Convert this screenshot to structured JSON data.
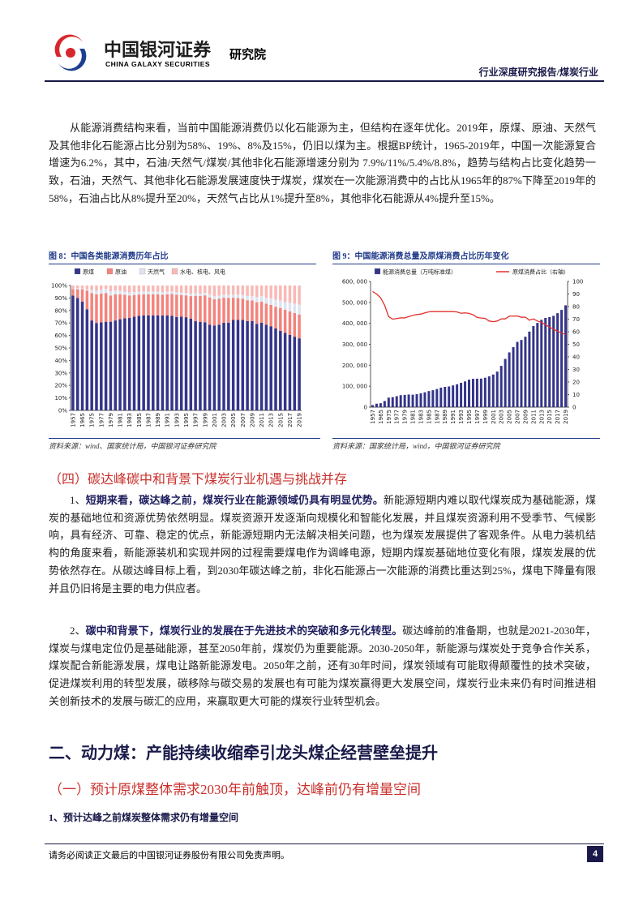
{
  "header": {
    "company": "中国银河证券",
    "company_en": "CHINA GALAXY SECURITIES",
    "institute": "研究院",
    "report_type": "行业深度研究报告/煤炭行业"
  },
  "paragraphs": [
    "从能源消费结构来看，当前中国能源消费仍以化石能源为主，但结构在逐年优化。2019年，原煤、原油、天然气及其他非化石能源占比分别为58%、19%、8%及15%，仍旧以煤为主。根据BP统计，1965-2019年，中国一次能源复合增速为6.2%，其中，石油/天然气/煤炭/其他非化石能源增速分别为 7.9%/11%/5.4%/8.8%，趋势与结构占比变化趋势一致，石油，天然气、其他非化石能源发展速度快于煤炭，煤炭在一次能源消费中的占比从1965年的87%下降至2019年的58%，石油占比从8%提升至20%，天然气占比从1%提升至8%，其他非化石能源从4%提升至15%。",
    {
      "lead": "1、",
      "bold": "短期来看，碳达峰之前，煤炭行业在能源领域仍具有明显优势。",
      "text": "新能源短期内难以取代煤炭成为基础能源，煤炭的基础地位和资源优势依然明显。煤炭资源开发逐渐向规模化和智能化发展，并且煤炭资源利用不受季节、气候影响，具有经济、可靠、稳定的优点，新能源短期内无法解决相关问题，也为煤炭发展提供了客观条件。从电力装机结构的角度来看，新能源装机和实现并网的过程需要煤电作为调峰电源，短期内煤炭基础地位变化有限，煤炭发展的优势依然存在。从碳达峰目标上看，到2030年碳达峰之前，非化石能源占一次能源的消费比重达到25%，煤电下降量有限并且仍旧将是主要的电力供应者。"
    },
    {
      "lead": "2、",
      "bold": "碳中和背景下，煤炭行业的发展在于先进技术的突破和多元化转型。",
      "text": "碳达峰前的准备期，也就是2021-2030年，煤炭与煤电定位仍是基础能源，甚至2050年前，煤炭仍为重要能源。2030-2050年，新能源与煤炭处于竞争合作关系，煤炭配合新能源发展，煤电让路新能源发电。2050年之前，还有30年时间，煤炭领域有可能取得颠覆性的技术突破，促进煤炭利用的转型发展，碳移除与碳交易的发展也有可能为煤炭赢得更大发展空间，煤炭行业未来仍有时间推进相关创新技术的发展与碳汇的应用，来赢取更大可能的煤炭行业转型机会。"
    }
  ],
  "headings": [
    "（四）碳达峰碳中和背景下煤炭行业机遇与挑战并存",
    "二、动力煤：产能持续收缩牵引龙头煤企经营壁垒提升",
    "（一）预计原煤整体需求2030年前触顶，达峰前仍有增量空间",
    "1、预计达峰之前煤炭整体需求仍有增量空间"
  ],
  "footer": {
    "disclaimer": "请务必阅读正文最后的中国银河证券股份有限公司免责声明。",
    "page": 4
  },
  "chart_data": [
    {
      "type": "bar",
      "stacked": true,
      "title": "图 8：中国各类能源消费历年占比",
      "source": "资料来源：wind、国家统计局，中国银河证券研究院",
      "categories": [
        "1957",
        null,
        "1965",
        null,
        "1975",
        null,
        "1977",
        null,
        "1979",
        null,
        "1981",
        null,
        "1983",
        null,
        "1985",
        null,
        "1987",
        null,
        "1989",
        null,
        "1991",
        null,
        "1993",
        null,
        "1995",
        null,
        "1997",
        null,
        "1999",
        null,
        "2001",
        null,
        "2003",
        null,
        "2005",
        null,
        "2007",
        null,
        "2009",
        null,
        "2011",
        null,
        "2013",
        null,
        "2015",
        null,
        "2017",
        null,
        "2019"
      ],
      "ylim": [
        0,
        100
      ],
      "yticks": [
        {
          "value": 0,
          "label": "0%"
        },
        {
          "value": 10,
          "label": "10%"
        },
        {
          "value": 20,
          "label": "20%"
        },
        {
          "value": 30,
          "label": "30%"
        },
        {
          "value": 40,
          "label": "40%"
        },
        {
          "value": 50,
          "label": "50%"
        },
        {
          "value": 60,
          "label": "60%"
        },
        {
          "value": 70,
          "label": "70%"
        },
        {
          "value": 80,
          "label": "80%"
        },
        {
          "value": 90,
          "label": "90%"
        },
        {
          "value": 100,
          "label": "100%"
        }
      ],
      "series": [
        {
          "name": "原煤",
          "color": "#34348a",
          "values": [
            92,
            90,
            87,
            81,
            72,
            70,
            70.5,
            71,
            71,
            72,
            73,
            73.7,
            74,
            75,
            75.8,
            76,
            76,
            76,
            76,
            76,
            76,
            75.7,
            74.7,
            75,
            74.6,
            73.5,
            71.4,
            70.9,
            70.6,
            68.5,
            68,
            68.5,
            70.2,
            70.2,
            72.4,
            72.4,
            72.5,
            71.5,
            71.6,
            69.2,
            70.2,
            68.5,
            67.4,
            65.6,
            63.7,
            62,
            60.4,
            59,
            57.7
          ]
        },
        {
          "name": "原油",
          "color": "#f3837c",
          "values": [
            5,
            7,
            10,
            15,
            22,
            23,
            23,
            23,
            21,
            21,
            20,
            18.9,
            18,
            17.4,
            17,
            17,
            17,
            17,
            17,
            16.6,
            17,
            17.5,
            18,
            17.4,
            17.5,
            18,
            20.4,
            20.8,
            21.5,
            22,
            21,
            21,
            20,
            19.9,
            17.8,
            17.5,
            17,
            16.7,
            16.4,
            17.4,
            16.8,
            17,
            17.1,
            17.4,
            18.3,
            18.5,
            18.8,
            18.9,
            19
          ]
        },
        {
          "name": "天然气",
          "color": "#dfe3f0",
          "values": [
            0.1,
            0.9,
            0.6,
            0.9,
            2.5,
            2.8,
            3.1,
            3.2,
            3.3,
            3.1,
            2.8,
            2.5,
            2.4,
            2.4,
            2.2,
            2.3,
            2.1,
            2.1,
            2,
            2.1,
            2,
            1.9,
            1.9,
            1.9,
            1.8,
            1.8,
            1.8,
            1.8,
            2,
            2.2,
            2.4,
            2.3,
            2.3,
            2.3,
            2.4,
            2.7,
            3,
            3.4,
            3.5,
            4,
            4.6,
            4.8,
            5.3,
            5.7,
            5.9,
            6.2,
            7,
            7.6,
            8
          ]
        },
        {
          "name": "水电、核电、风电",
          "color": "#f9b9b6",
          "values": [
            2.9,
            2.1,
            2.4,
            3.1,
            3.5,
            4.2,
            3.4,
            2.8,
            4.7,
            3.9,
            4.2,
            4.9,
            5.6,
            5.2,
            5,
            4.7,
            4.9,
            4.9,
            5,
            5.3,
            5,
            4.9,
            5.4,
            5.7,
            6.1,
            6.7,
            6.4,
            6.5,
            5.9,
            7.3,
            8.6,
            8.2,
            7.5,
            7.6,
            7.4,
            7.4,
            7.5,
            8.4,
            8.5,
            9.4,
            8.4,
            9.7,
            10.2,
            11.3,
            12.1,
            13.3,
            13.8,
            14.5,
            15.3
          ]
        }
      ]
    },
    {
      "type": "bar",
      "title": "图 9：中国能源消费总量及原煤消费占比历年变化",
      "source": "资料来源：国家统计局，wind，中国银河证券研究院",
      "categories": [
        "1957",
        null,
        "1965",
        null,
        "1975",
        null,
        "1977",
        null,
        "1979",
        null,
        "1981",
        null,
        "1983",
        null,
        "1985",
        null,
        "1987",
        null,
        "1989",
        null,
        "1991",
        null,
        "1993",
        null,
        "1995",
        null,
        "1997",
        null,
        "1999",
        null,
        "2001",
        null,
        "2003",
        null,
        "2005",
        null,
        "2007",
        null,
        "2009",
        null,
        "2011",
        null,
        "2013",
        null,
        "2015",
        null,
        "2017",
        null,
        "2019"
      ],
      "ylim": [
        0,
        600000
      ],
      "yticks": [
        0,
        {
          "value": 100000,
          "label": "100, 000"
        },
        {
          "value": 200000,
          "label": "200, 000"
        },
        {
          "value": 300000,
          "label": "300, 000"
        },
        {
          "value": 400000,
          "label": "400, 000"
        },
        {
          "value": 500000,
          "label": "500, 000"
        },
        {
          "value": 600000,
          "label": "600, 000"
        }
      ],
      "y2lim": [
        0,
        100
      ],
      "y2ticks": [
        0,
        10,
        20,
        30,
        40,
        50,
        60,
        70,
        80,
        90,
        100
      ],
      "series": [
        {
          "name": "能源消费总量（万吨标准煤）",
          "color": "#34348a",
          "values": [
            9644,
            16540,
            18901,
            29291,
            45425,
            47831,
            52354,
            57144,
            58588,
            60275,
            59447,
            62067,
            66040,
            70904,
            76682,
            80850,
            86632,
            92997,
            96934,
            98703,
            103783,
            109170,
            115993,
            122737,
            131176,
            135192,
            135909,
            136184,
            140569,
            146964,
            155547,
            169577,
            197083,
            230281,
            261369,
            286467,
            311442,
            320611,
            336126,
            360648,
            387043,
            402138,
            416913,
            425806,
            429905,
            435819,
            448529,
            464000,
            486000
          ]
        },
        {
          "name": "原煤消费占比（右轴）",
          "type": "line",
          "axis": "y2",
          "color": "#e2312c",
          "values": [
            92,
            90,
            87,
            81,
            72,
            70,
            70.5,
            71,
            71,
            72,
            73,
            73.7,
            74,
            75,
            75.8,
            76,
            76,
            76,
            76,
            76,
            76,
            75.7,
            74.7,
            75,
            74.6,
            73.5,
            71.4,
            70.9,
            70.6,
            68.5,
            68,
            68.5,
            70.2,
            70.2,
            72.4,
            72.4,
            72.5,
            71.5,
            71.6,
            69.2,
            70.2,
            68.5,
            67.4,
            65.6,
            63.7,
            62,
            60.4,
            59,
            57.7
          ]
        }
      ]
    }
  ]
}
